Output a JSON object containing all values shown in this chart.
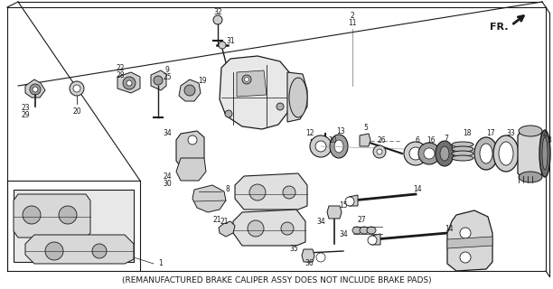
{
  "background_color": "#ffffff",
  "footer_text": "(REMANUFACTURED BRAKE CALIPER ASSY DOES NOT INCLUDE BRAKE PADS)",
  "footer_fontsize": 6.5,
  "line_color": "#1a1a1a",
  "gray_light": "#d0d0d0",
  "gray_mid": "#a0a0a0",
  "gray_dark": "#707070",
  "figw": 6.12,
  "figh": 3.2,
  "dpi": 100
}
